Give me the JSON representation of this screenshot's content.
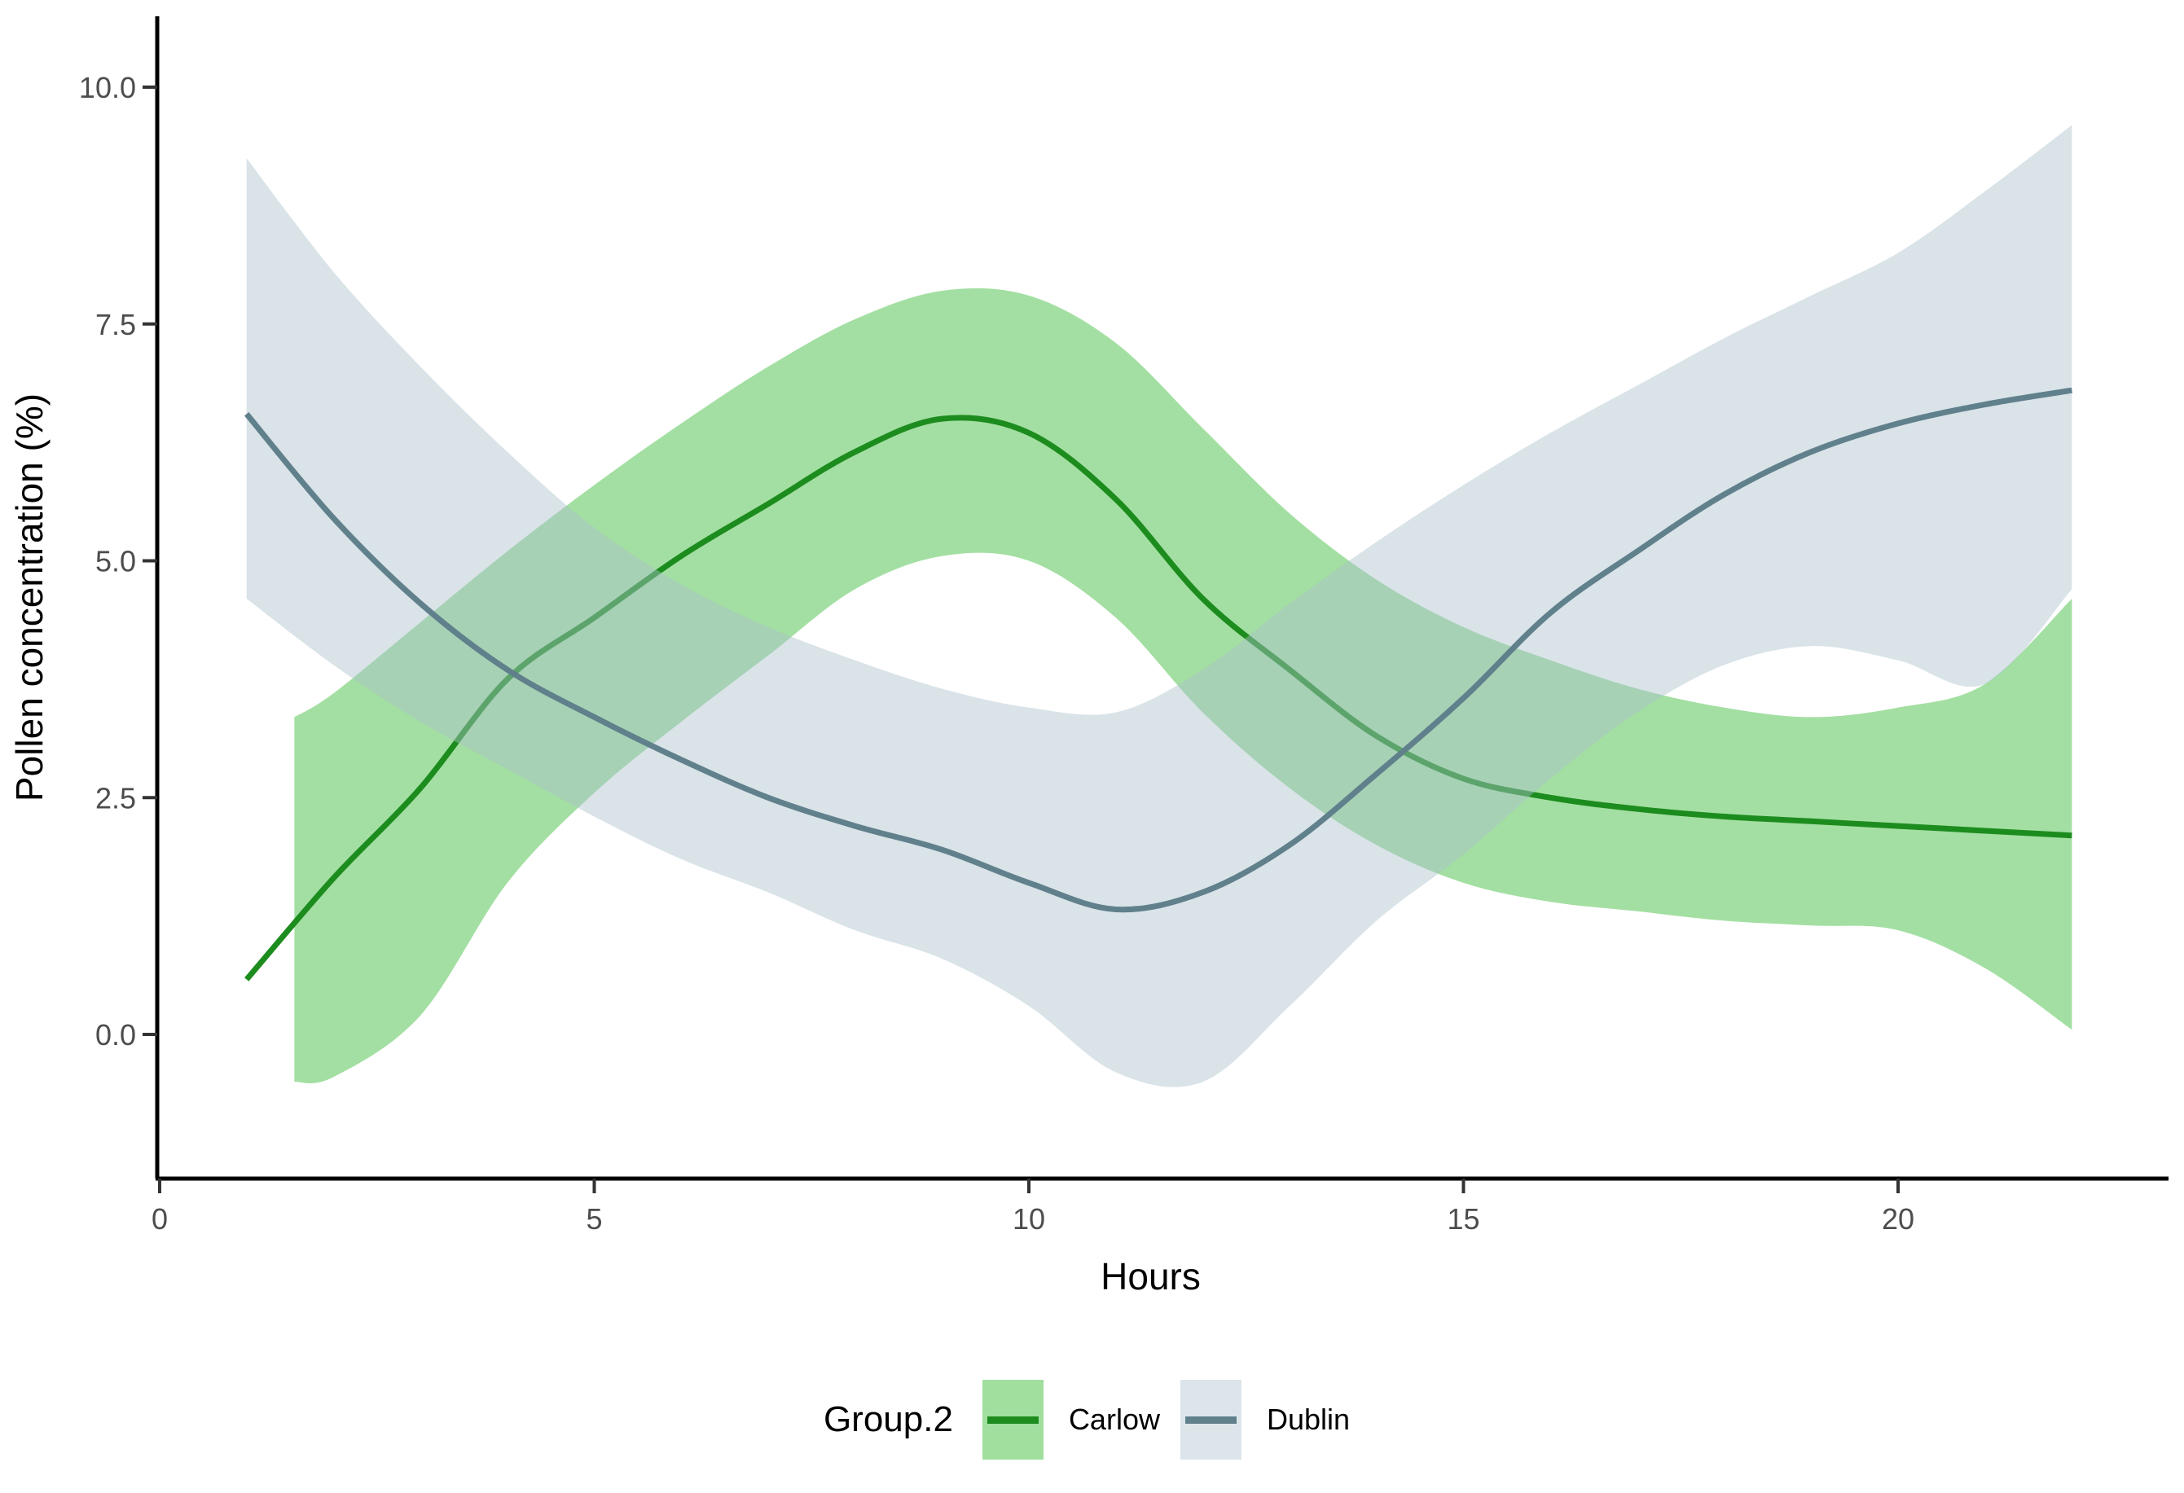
{
  "figure": {
    "background": "#ffffff"
  },
  "chart_data": {
    "type": "line",
    "title": "",
    "xlabel": "Hours",
    "ylabel": "Pollen concentration (%)",
    "grid": false,
    "x_axis": {
      "ticks": [
        0,
        5,
        10,
        15,
        20
      ],
      "tick_labels": [
        "0",
        "5",
        "10",
        "15",
        "20"
      ],
      "range_hours": [
        0,
        22.9
      ]
    },
    "y_axis": {
      "ticks": [
        0.0,
        2.5,
        5.0,
        7.5,
        10.0
      ],
      "tick_labels": [
        "0.0",
        "2.5",
        "5.0",
        "7.5",
        "10.0"
      ],
      "range": [
        -1.5,
        10.75
      ]
    },
    "legend": {
      "title": "Group.2",
      "position": "bottom"
    },
    "series": [
      {
        "name": "Carlow",
        "line_color": "#1d8c1e",
        "band_fill": "rgba(36,178,33,0.42)",
        "swatch_fill": "#a0df9e",
        "x": [
          1,
          2,
          3,
          4,
          5,
          6,
          7,
          8,
          9,
          10,
          11,
          12,
          13,
          14,
          15,
          16,
          17,
          18,
          19,
          20,
          21,
          22
        ],
        "y": [
          0.58,
          1.65,
          2.6,
          3.75,
          4.4,
          5.05,
          5.6,
          6.15,
          6.5,
          6.35,
          5.65,
          4.6,
          3.85,
          3.15,
          2.7,
          2.5,
          2.38,
          2.3,
          2.25,
          2.2,
          2.15,
          2.1
        ],
        "band_x": [
          1.55,
          2,
          3,
          4,
          5,
          6,
          7,
          8,
          9,
          10,
          11,
          12,
          13,
          14,
          15,
          16,
          17,
          18,
          19,
          20,
          21,
          22
        ],
        "band_high": [
          3.35,
          3.6,
          4.35,
          5.1,
          5.8,
          6.45,
          7.05,
          7.55,
          7.85,
          7.8,
          7.3,
          6.4,
          5.5,
          4.8,
          4.3,
          3.95,
          3.65,
          3.45,
          3.35,
          3.45,
          3.7,
          4.6
        ],
        "band_low": [
          -0.5,
          -0.45,
          0.2,
          1.6,
          2.55,
          3.3,
          4.0,
          4.7,
          5.05,
          5.0,
          4.4,
          3.4,
          2.6,
          2.0,
          1.6,
          1.4,
          1.3,
          1.2,
          1.15,
          1.1,
          0.7,
          0.05
        ]
      },
      {
        "name": "Dublin",
        "line_color": "#60808c",
        "band_fill": "rgba(170,194,204,0.45)",
        "swatch_fill": "#dce6ea",
        "x": [
          1,
          2,
          3,
          4,
          5,
          6,
          7,
          8,
          9,
          10,
          11,
          12,
          13,
          14,
          15,
          16,
          17,
          18,
          19,
          20,
          21,
          22
        ],
        "y": [
          6.55,
          5.45,
          4.55,
          3.85,
          3.35,
          2.9,
          2.5,
          2.2,
          1.95,
          1.6,
          1.32,
          1.5,
          2.0,
          2.75,
          3.55,
          4.45,
          5.1,
          5.7,
          6.15,
          6.45,
          6.65,
          6.8
        ],
        "band_x": [
          1,
          2,
          3,
          4,
          5,
          6,
          7,
          8,
          9,
          10,
          11,
          12,
          13,
          14,
          15,
          16,
          17,
          18,
          19,
          20,
          21,
          22
        ],
        "band_high": [
          9.25,
          8.05,
          7.05,
          6.15,
          5.35,
          4.75,
          4.3,
          3.95,
          3.65,
          3.45,
          3.4,
          3.85,
          4.55,
          5.2,
          5.8,
          6.35,
          6.85,
          7.35,
          7.8,
          8.25,
          8.9,
          9.6
        ],
        "band_low": [
          4.6,
          3.9,
          3.3,
          2.8,
          2.3,
          1.85,
          1.5,
          1.1,
          0.8,
          0.3,
          -0.4,
          -0.5,
          0.3,
          1.2,
          1.9,
          2.7,
          3.4,
          3.9,
          4.1,
          3.95,
          3.7,
          4.7
        ]
      }
    ]
  }
}
